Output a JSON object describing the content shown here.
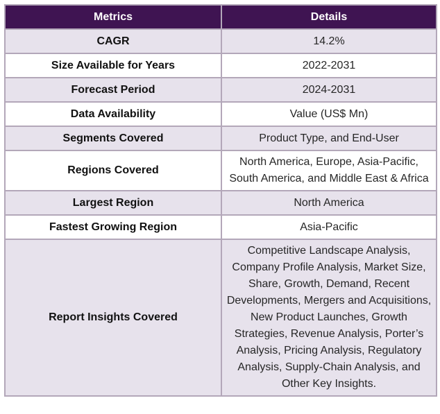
{
  "table": {
    "headers": [
      "Metrics",
      "Details"
    ],
    "rows": [
      {
        "metric": "CAGR",
        "details": "14.2%"
      },
      {
        "metric": "Size Available for Years",
        "details": "2022-2031"
      },
      {
        "metric": "Forecast Period",
        "details": "2024-2031"
      },
      {
        "metric": "Data Availability",
        "details": "Value (US$ Mn)"
      },
      {
        "metric": "Segments Covered",
        "details": "Product Type, and End-User"
      },
      {
        "metric": "Regions Covered",
        "details": "North America, Europe, Asia-Pacific, South America, and Middle East & Africa"
      },
      {
        "metric": "Largest Region",
        "details": "North America"
      },
      {
        "metric": "Fastest Growing Region",
        "details": "Asia-Pacific"
      },
      {
        "metric": "Report Insights Covered",
        "details": "Competitive Landscape Analysis, Company Profile Analysis, Market Size, Share, Growth, Demand, Recent Developments, Mergers and Acquisitions, New Product Launches, Growth Strategies, Revenue Analysis, Porter’s Analysis, Pricing Analysis, Regulatory Analysis, Supply-Chain Analysis, and Other Key Insights."
      }
    ]
  },
  "colors": {
    "header_bg": "#3f1452",
    "header_text": "#ffffff",
    "row_alt_bg": "#e7e2ec",
    "border": "#b3a7b9"
  }
}
